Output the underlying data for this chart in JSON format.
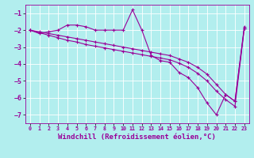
{
  "background_color": "#b2eeee",
  "grid_color": "#ffffff",
  "line_color": "#990099",
  "marker": "+",
  "marker_size": 3.5,
  "line_width": 0.8,
  "xlabel": "Windchill (Refroidissement éolien,°C)",
  "xlabel_fontsize": 6.5,
  "xtick_fontsize": 4.8,
  "ytick_fontsize": 6.0,
  "ylim": [
    -7.5,
    -0.5
  ],
  "xlim": [
    -0.5,
    23.5
  ],
  "yticks": [
    -7,
    -6,
    -5,
    -4,
    -3,
    -2,
    -1
  ],
  "xticks": [
    0,
    1,
    2,
    3,
    4,
    5,
    6,
    7,
    8,
    9,
    10,
    11,
    12,
    13,
    14,
    15,
    16,
    17,
    18,
    19,
    20,
    21,
    22,
    23
  ],
  "series1": [
    -2.0,
    -2.2,
    -2.1,
    -2.0,
    -1.7,
    -1.7,
    -1.8,
    -2.0,
    -2.0,
    -2.0,
    -2.0,
    -0.8,
    -2.0,
    -3.5,
    -3.8,
    -3.9,
    -4.5,
    -4.8,
    -5.4,
    -6.3,
    -7.0,
    -5.8,
    -6.2,
    -1.8
  ],
  "series2": [
    -2.0,
    -2.1,
    -2.2,
    -2.3,
    -2.4,
    -2.5,
    -2.6,
    -2.7,
    -2.8,
    -2.9,
    -3.0,
    -3.1,
    -3.2,
    -3.3,
    -3.4,
    -3.5,
    -3.7,
    -3.9,
    -4.2,
    -4.6,
    -5.2,
    -5.8,
    -6.2,
    -1.9
  ],
  "series3": [
    -2.0,
    -2.15,
    -2.3,
    -2.45,
    -2.6,
    -2.7,
    -2.85,
    -2.95,
    -3.05,
    -3.15,
    -3.25,
    -3.35,
    -3.45,
    -3.55,
    -3.65,
    -3.75,
    -3.95,
    -4.2,
    -4.55,
    -5.0,
    -5.6,
    -6.1,
    -6.5,
    -1.9
  ]
}
